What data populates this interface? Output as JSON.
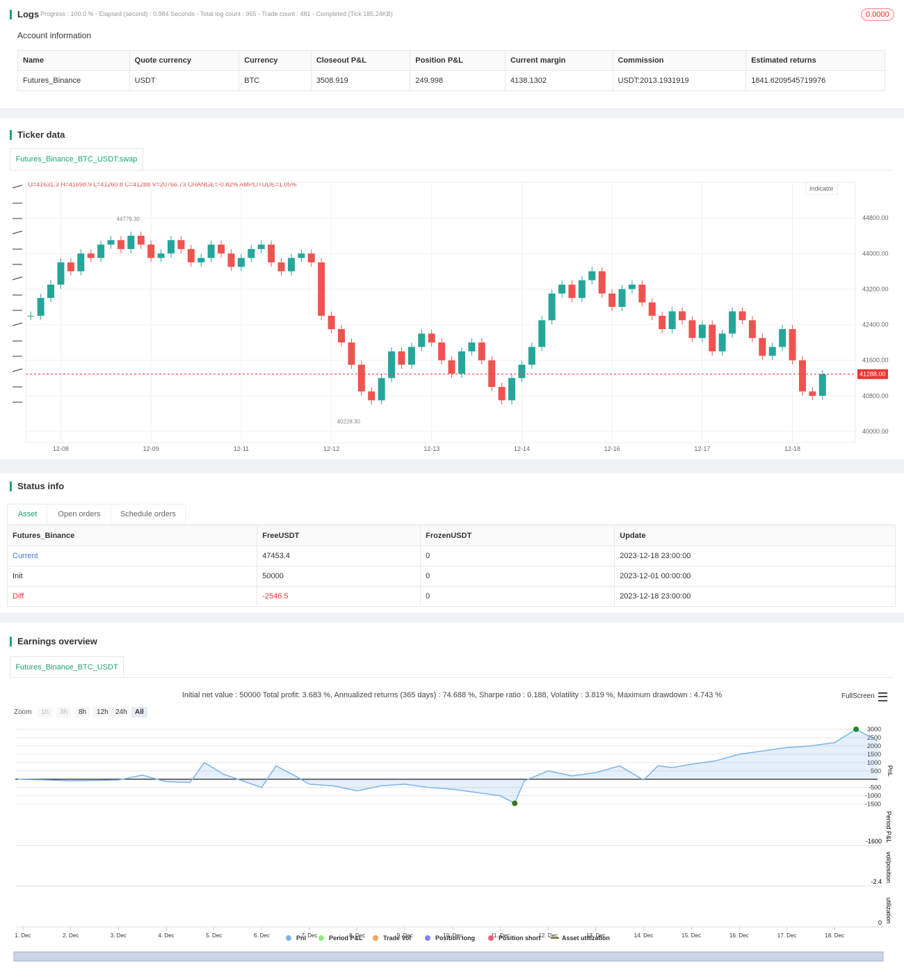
{
  "logs": {
    "title": "Logs",
    "summary": "Progress : 100.0 % - Elapsed (second) : 0.984 Seconds - Total log count : 965 - Trade count : 481 - Completed (Tick 185.24KB)",
    "badge": "0.0000"
  },
  "account": {
    "title": "Account information",
    "columns": [
      "Name",
      "Quote currency",
      "Currency",
      "Closeout P&L",
      "Position P&L",
      "Current margin",
      "Commission",
      "Estimated returns"
    ],
    "rows": [
      [
        "Futures_Binance",
        "USDT",
        "BTC",
        "3508.919",
        "249.998",
        "4138.1302",
        "USDT:2013.1931919",
        "1841.6209545719976"
      ]
    ]
  },
  "ticker": {
    "title": "Ticker data",
    "tab": "Futures_Binance_BTC_USDT:swap",
    "ohlc": "O=41631.3 H=41698.9 L=41260.8 C=41288 V=20766.73 CHANGE=-0.82% AMPLITUDE=1.05%",
    "indicator": "Indicator"
  },
  "status": {
    "title": "Status info",
    "tabs": [
      "Asset",
      "Open orders",
      "Schedule orders"
    ],
    "columns": [
      "Futures_Binance",
      "FreeUSDT",
      "FrozenUSDT",
      "Update"
    ],
    "rows": [
      [
        "Current",
        "47453.4",
        "0",
        "2023-12-18 23:00:00"
      ],
      [
        "Init",
        "50000",
        "0",
        "2023-12-01 00:00:00"
      ],
      [
        "Diff",
        "-2546.5",
        "0",
        "2023-12-18 23:00:00"
      ]
    ]
  },
  "earnings": {
    "title": "Earnings overview",
    "tab": "Futures_Binance_BTC_USDT",
    "stats": "Initial net value : 50000 Total profit: 3.683 %, Annualized returns (365 days) : 74.688 %, Sharpe ratio : 0.188, Volatility : 3.819 %, Maximum drawdown : 4.743 %",
    "fullscreen": "FullScreen",
    "zoom": "Zoom",
    "zoom_buttons": [
      "1h",
      "3h",
      "8h",
      "12h",
      "24h",
      "All"
    ]
  },
  "chart_data": [
    {
      "type": "candlestick",
      "values": [
        42600,
        43000,
        43300,
        43800,
        43600,
        44000,
        43900,
        44200,
        44300,
        44100,
        44400,
        44200,
        43900,
        44000,
        44300,
        44100,
        43800,
        43900,
        44200,
        44000,
        43700,
        43900,
        44100,
        44200,
        43800,
        43600,
        43900,
        44000,
        43800,
        42600,
        42300,
        42000,
        41500,
        40900,
        40700,
        41200,
        41800,
        41500,
        41900,
        42200,
        42000,
        41600,
        41300,
        41800,
        42000,
        41600,
        41000,
        40700,
        41200,
        41500,
        41900,
        42500,
        43100,
        43300,
        43000,
        43400,
        43600,
        43100,
        42800,
        43200,
        43300,
        42900,
        42600,
        42300,
        42700,
        42500,
        42100,
        42400,
        41800,
        42200,
        42700,
        42500,
        42100,
        41700,
        41900,
        42300,
        41600,
        40900,
        40800,
        41288
      ],
      "colors": {
        "up": "#26a69a",
        "down": "#ef5350"
      },
      "xticks": [
        {
          "value": 3,
          "label": "12-08"
        },
        {
          "value": 12,
          "label": "12-09"
        },
        {
          "value": 21,
          "label": "12-11"
        },
        {
          "value": 30,
          "label": "12-12"
        },
        {
          "value": 40,
          "label": "12-13"
        },
        {
          "value": 49,
          "label": "12-14"
        },
        {
          "value": 58,
          "label": "12-16"
        },
        {
          "value": 67,
          "label": "12-17"
        },
        {
          "value": 76,
          "label": "12-18"
        }
      ],
      "ylim": [
        39750,
        45600
      ],
      "yticks": [
        {
          "value": 40000,
          "label": "40000.00"
        },
        {
          "value": 40800,
          "label": "40800.00"
        },
        {
          "value": 41600,
          "label": "41600.00"
        },
        {
          "value": 42400,
          "label": "42400.00"
        },
        {
          "value": 43200,
          "label": "43200.00"
        },
        {
          "value": 44000,
          "label": "44000.00"
        },
        {
          "value": 44800,
          "label": "44800.00"
        }
      ],
      "last_price": {
        "value": 41288,
        "label": "41288.00"
      },
      "high_marker": {
        "x": 8,
        "value": 44779.3,
        "label": "44779.30"
      },
      "low_marker": {
        "x": 30,
        "value": 40228.3,
        "label": "40228.30"
      }
    },
    {
      "type": "line",
      "y_label": "PnL",
      "x": [
        0.9,
        1.5,
        2,
        2.5,
        3,
        3.5,
        4,
        4.5,
        4.8,
        5.2,
        5.6,
        6,
        6.3,
        6.7,
        7,
        7.5,
        8,
        8.5,
        9,
        9.5,
        10,
        10.5,
        11,
        11.3,
        11.5,
        12,
        12.5,
        13,
        13.5,
        14,
        14.3,
        14.6,
        15,
        15.5,
        16,
        16.5,
        17,
        17.5,
        18,
        18.45,
        18.9
      ],
      "series": [
        {
          "name": "Pnl",
          "color": "#7cb5ec",
          "values": [
            0,
            -50,
            -100,
            -80,
            -50,
            250,
            -150,
            -200,
            1000,
            300,
            -100,
            -500,
            800,
            200,
            -300,
            -400,
            -700,
            -400,
            -300,
            -500,
            -600,
            -800,
            -1000,
            -1450,
            -100,
            500,
            200,
            400,
            800,
            -50,
            800,
            700,
            900,
            1100,
            1500,
            1700,
            1900,
            2000,
            2200,
            3000,
            2300
          ]
        }
      ],
      "other_series": [
        {
          "name": "Period P&L",
          "color": "#90ed7d"
        },
        {
          "name": "Trade Vol",
          "color": "#f7a35c"
        },
        {
          "name": "Position long",
          "color": "#8085e9"
        },
        {
          "name": "Position short",
          "color": "#f15c80"
        },
        {
          "name": "Asset utilization",
          "color": "#7a6a2a"
        }
      ],
      "xlim": [
        0.84,
        18.9
      ],
      "xticks": [
        {
          "value": 1,
          "label": "1. Dec"
        },
        {
          "value": 2,
          "label": "2. Dec"
        },
        {
          "value": 3,
          "label": "3. Dec"
        },
        {
          "value": 4,
          "label": "4. Dec"
        },
        {
          "value": 5,
          "label": "5. Dec"
        },
        {
          "value": 6,
          "label": "6. Dec"
        },
        {
          "value": 7,
          "label": "7. Dec"
        },
        {
          "value": 8,
          "label": "8. Dec"
        },
        {
          "value": 9,
          "label": "9. Dec"
        },
        {
          "value": 10,
          "label": "10. Dec"
        },
        {
          "value": 11,
          "label": "11. Dec"
        },
        {
          "value": 12,
          "label": "12. Dec"
        },
        {
          "value": 13,
          "label": "13. Dec"
        },
        {
          "value": 14,
          "label": "14. Dec"
        },
        {
          "value": 15,
          "label": "15. Dec"
        },
        {
          "value": 16,
          "label": "16. Dec"
        },
        {
          "value": 17,
          "label": "17. Dec"
        },
        {
          "value": 18,
          "label": "18. Dec"
        }
      ],
      "ylim": [
        -1600,
        3250
      ],
      "yticks": [
        3000,
        2500,
        2000,
        1500,
        1000,
        500,
        -500,
        -1000,
        -1500
      ],
      "max_index": 39,
      "min_index": 23,
      "subpanels": [
        {
          "name": "Period P&L",
          "yticks": [
            -1600
          ]
        },
        {
          "name": "vol/position",
          "yticks": [
            -2.4
          ]
        },
        {
          "name": "utilization",
          "yticks": [
            0
          ]
        }
      ]
    }
  ]
}
